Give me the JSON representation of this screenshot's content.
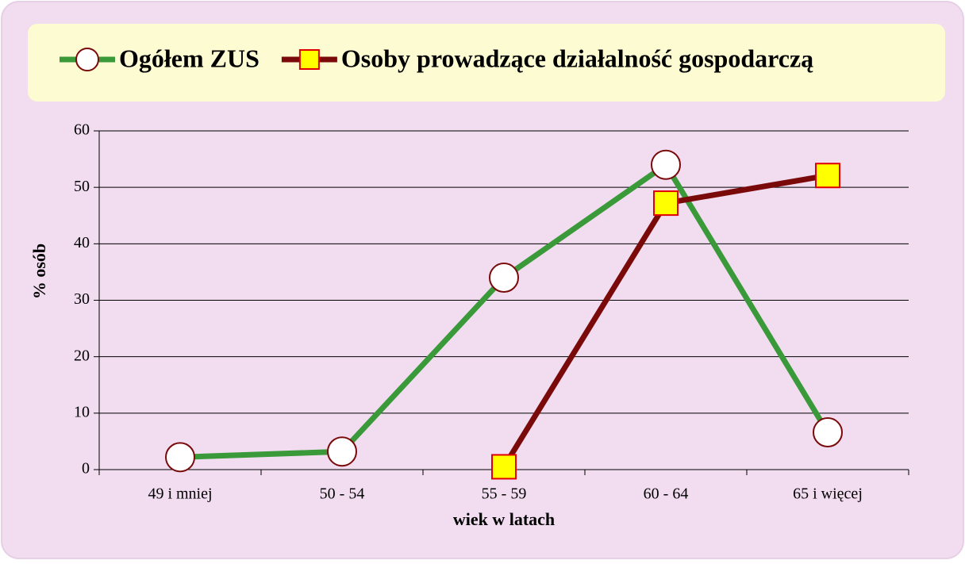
{
  "chart_data": {
    "type": "line",
    "xlabel": "wiek w latach",
    "ylabel": "% osób",
    "categories": [
      "49 i mniej",
      "50 - 54",
      "55 - 59",
      "60 - 64",
      "65  i więcej"
    ],
    "series": [
      {
        "name": "Ogółem ZUS",
        "color": "#3a9a3a",
        "marker": "circle",
        "values": [
          2.2,
          3.2,
          34,
          54,
          6.6
        ]
      },
      {
        "name": "Osoby prowadzące działalność gospodarczą",
        "color": "#7a0a0a",
        "marker": "square",
        "values": [
          null,
          null,
          0.5,
          47.2,
          52.1
        ]
      }
    ],
    "ylim": [
      0,
      60
    ],
    "yticks": [
      0,
      10,
      20,
      30,
      40,
      50,
      60
    ],
    "grid": true,
    "legend": "top"
  }
}
